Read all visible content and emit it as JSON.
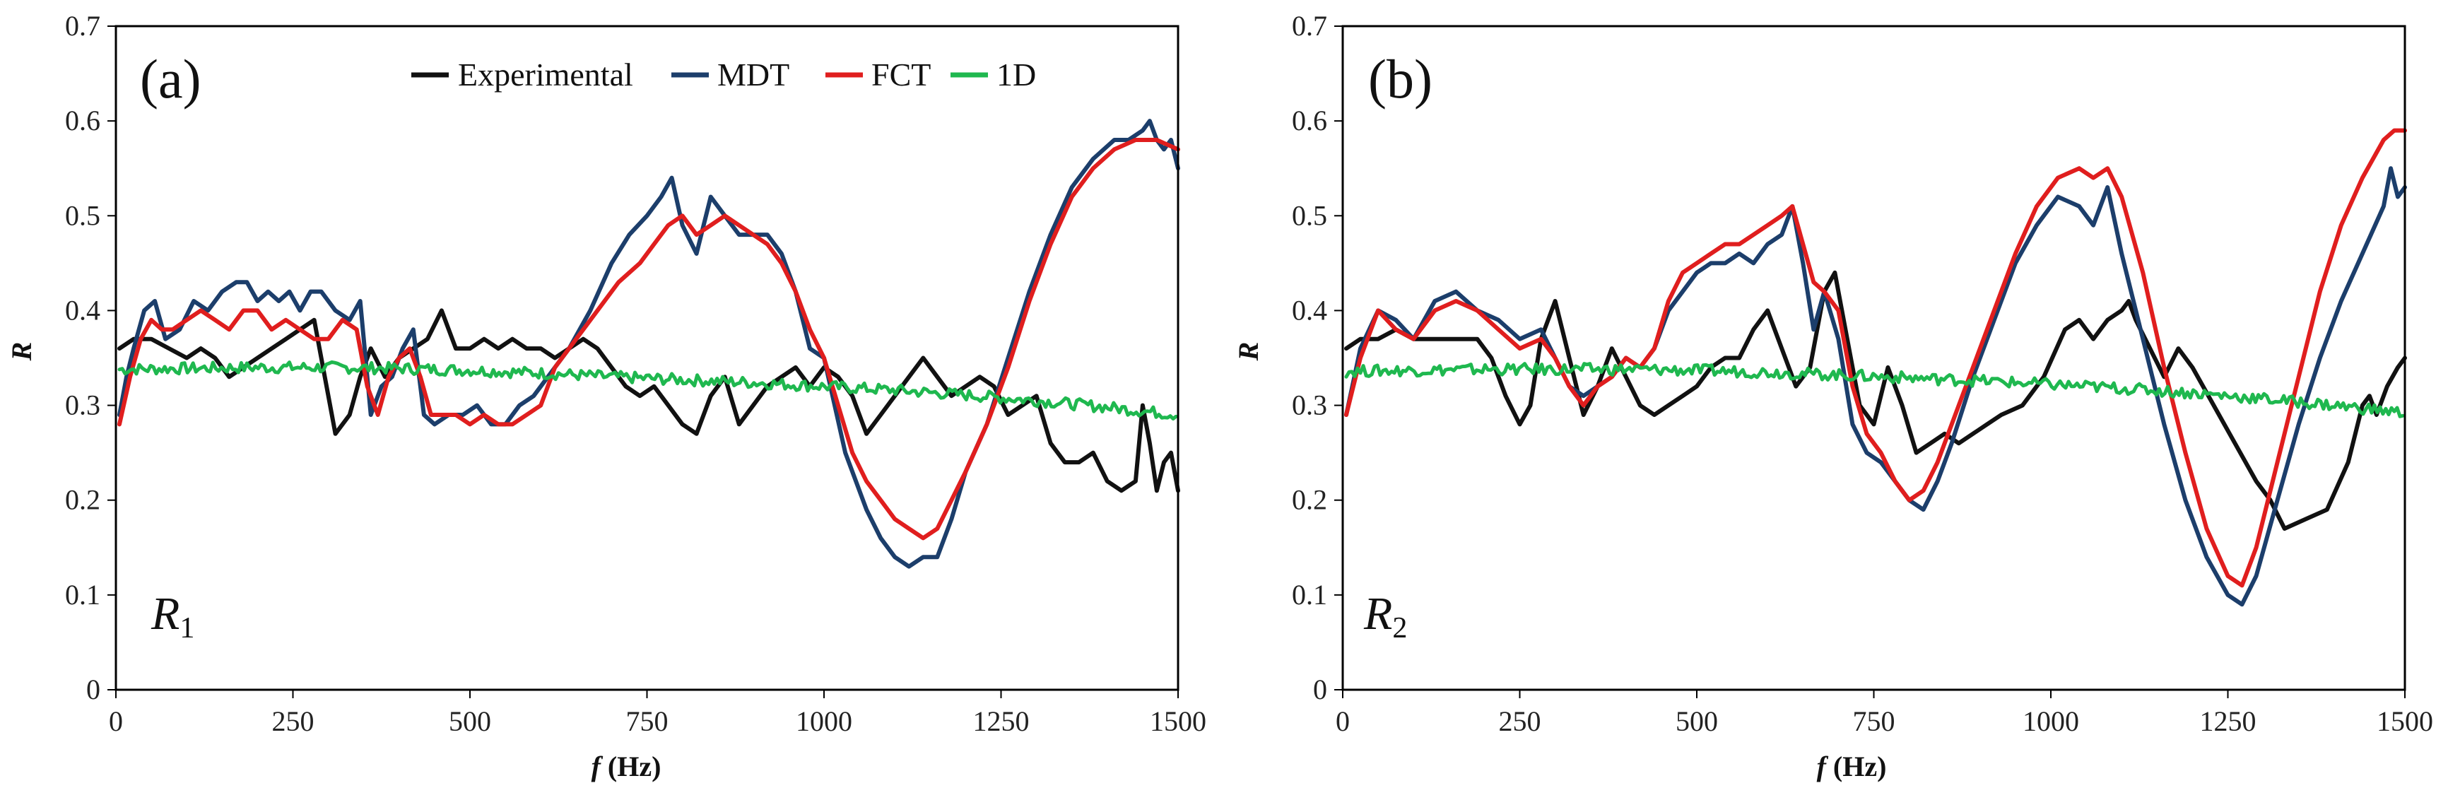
{
  "chart_data": [
    {
      "type": "line",
      "panel_label": "(a)",
      "annotation": {
        "main": "R",
        "sub": "1"
      },
      "xlabel": "f",
      "xlabel_unit": " (Hz)",
      "ylabel": "R",
      "xlim": [
        0,
        1500
      ],
      "ylim": [
        0,
        0.7
      ],
      "xticks": [
        "0",
        "250",
        "500",
        "750",
        "1000",
        "1250",
        "1500"
      ],
      "yticks": [
        "0",
        "0.1",
        "0.2",
        "0.3",
        "0.4",
        "0.5",
        "0.6",
        "0.7"
      ],
      "legend": [
        "Experimental",
        "MDT",
        "FCT",
        "1D"
      ],
      "series": [
        {
          "name": "Experimental",
          "color": "#111111",
          "x": [
            5,
            25,
            50,
            75,
            100,
            120,
            140,
            160,
            180,
            200,
            220,
            240,
            260,
            280,
            295,
            310,
            330,
            345,
            360,
            380,
            400,
            420,
            440,
            460,
            480,
            500,
            520,
            540,
            560,
            580,
            600,
            620,
            640,
            660,
            680,
            700,
            720,
            740,
            760,
            780,
            800,
            820,
            840,
            860,
            880,
            900,
            920,
            940,
            960,
            980,
            1000,
            1020,
            1040,
            1060,
            1080,
            1100,
            1120,
            1140,
            1160,
            1180,
            1200,
            1220,
            1240,
            1260,
            1280,
            1300,
            1320,
            1340,
            1360,
            1380,
            1400,
            1420,
            1440,
            1450,
            1460,
            1470,
            1480,
            1490,
            1500
          ],
          "y": [
            0.36,
            0.37,
            0.37,
            0.36,
            0.35,
            0.36,
            0.35,
            0.33,
            0.34,
            0.35,
            0.36,
            0.37,
            0.38,
            0.39,
            0.33,
            0.27,
            0.29,
            0.33,
            0.36,
            0.33,
            0.35,
            0.36,
            0.37,
            0.4,
            0.36,
            0.36,
            0.37,
            0.36,
            0.37,
            0.36,
            0.36,
            0.35,
            0.36,
            0.37,
            0.36,
            0.34,
            0.32,
            0.31,
            0.32,
            0.3,
            0.28,
            0.27,
            0.31,
            0.33,
            0.28,
            0.3,
            0.32,
            0.33,
            0.34,
            0.32,
            0.34,
            0.33,
            0.31,
            0.27,
            0.29,
            0.31,
            0.33,
            0.35,
            0.33,
            0.31,
            0.32,
            0.33,
            0.32,
            0.29,
            0.3,
            0.31,
            0.26,
            0.24,
            0.24,
            0.25,
            0.22,
            0.21,
            0.22,
            0.3,
            0.26,
            0.21,
            0.24,
            0.25,
            0.21
          ]
        },
        {
          "name": "MDT",
          "color": "#1c3e6b",
          "x": [
            5,
            15,
            25,
            40,
            55,
            70,
            90,
            110,
            130,
            150,
            170,
            185,
            200,
            215,
            230,
            245,
            260,
            275,
            290,
            310,
            330,
            345,
            360,
            375,
            390,
            405,
            420,
            435,
            450,
            470,
            490,
            510,
            530,
            550,
            570,
            590,
            610,
            640,
            670,
            700,
            725,
            750,
            770,
            785,
            800,
            820,
            840,
            860,
            880,
            900,
            920,
            940,
            960,
            980,
            1000,
            1030,
            1060,
            1080,
            1100,
            1120,
            1140,
            1160,
            1180,
            1200,
            1230,
            1260,
            1290,
            1320,
            1350,
            1380,
            1410,
            1430,
            1450,
            1460,
            1470,
            1480,
            1490,
            1500
          ],
          "y": [
            0.29,
            0.33,
            0.36,
            0.4,
            0.41,
            0.37,
            0.38,
            0.41,
            0.4,
            0.42,
            0.43,
            0.43,
            0.41,
            0.42,
            0.41,
            0.42,
            0.4,
            0.42,
            0.42,
            0.4,
            0.39,
            0.41,
            0.29,
            0.32,
            0.33,
            0.36,
            0.38,
            0.29,
            0.28,
            0.29,
            0.29,
            0.3,
            0.28,
            0.28,
            0.3,
            0.31,
            0.33,
            0.36,
            0.4,
            0.45,
            0.48,
            0.5,
            0.52,
            0.54,
            0.49,
            0.46,
            0.52,
            0.5,
            0.48,
            0.48,
            0.48,
            0.46,
            0.42,
            0.36,
            0.35,
            0.25,
            0.19,
            0.16,
            0.14,
            0.13,
            0.14,
            0.14,
            0.18,
            0.23,
            0.28,
            0.35,
            0.42,
            0.48,
            0.53,
            0.56,
            0.58,
            0.58,
            0.59,
            0.6,
            0.58,
            0.57,
            0.58,
            0.55
          ]
        },
        {
          "name": "FCT",
          "color": "#e01e1e",
          "x": [
            5,
            20,
            35,
            50,
            65,
            80,
            100,
            120,
            140,
            160,
            180,
            200,
            220,
            240,
            260,
            280,
            300,
            320,
            340,
            355,
            370,
            385,
            400,
            415,
            430,
            445,
            460,
            480,
            500,
            520,
            540,
            560,
            580,
            600,
            620,
            650,
            680,
            710,
            740,
            760,
            780,
            800,
            820,
            840,
            860,
            880,
            900,
            920,
            940,
            960,
            980,
            1000,
            1020,
            1040,
            1060,
            1080,
            1100,
            1120,
            1140,
            1160,
            1180,
            1200,
            1230,
            1260,
            1290,
            1320,
            1350,
            1380,
            1410,
            1440,
            1470,
            1500
          ],
          "y": [
            0.28,
            0.33,
            0.37,
            0.39,
            0.38,
            0.38,
            0.39,
            0.4,
            0.39,
            0.38,
            0.4,
            0.4,
            0.38,
            0.39,
            0.38,
            0.37,
            0.37,
            0.39,
            0.38,
            0.32,
            0.29,
            0.33,
            0.35,
            0.36,
            0.33,
            0.29,
            0.29,
            0.29,
            0.28,
            0.29,
            0.28,
            0.28,
            0.29,
            0.3,
            0.34,
            0.37,
            0.4,
            0.43,
            0.45,
            0.47,
            0.49,
            0.5,
            0.48,
            0.49,
            0.5,
            0.49,
            0.48,
            0.47,
            0.45,
            0.42,
            0.38,
            0.35,
            0.3,
            0.25,
            0.22,
            0.2,
            0.18,
            0.17,
            0.16,
            0.17,
            0.2,
            0.23,
            0.28,
            0.34,
            0.41,
            0.47,
            0.52,
            0.55,
            0.57,
            0.58,
            0.58,
            0.57
          ]
        },
        {
          "name": "1D",
          "color": "#1fb84f",
          "x": [
            5,
            100,
            200,
            300,
            400,
            500,
            600,
            700,
            800,
            900,
            1000,
            1100,
            1200,
            1300,
            1400,
            1500
          ],
          "y": [
            0.338,
            0.339,
            0.34,
            0.34,
            0.339,
            0.337,
            0.334,
            0.33,
            0.327,
            0.324,
            0.32,
            0.316,
            0.311,
            0.305,
            0.298,
            0.29
          ]
        }
      ]
    },
    {
      "type": "line",
      "panel_label": "(b)",
      "annotation": {
        "main": "R",
        "sub": "2"
      },
      "xlabel": "f",
      "xlabel_unit": " (Hz)",
      "ylabel": "R",
      "xlim": [
        0,
        1500
      ],
      "ylim": [
        0,
        0.7
      ],
      "xticks": [
        "0",
        "250",
        "500",
        "750",
        "1000",
        "1250",
        "1500"
      ],
      "yticks": [
        "0",
        "0.1",
        "0.2",
        "0.3",
        "0.4",
        "0.5",
        "0.6",
        "0.7"
      ],
      "series": [
        {
          "name": "Experimental",
          "color": "#111111",
          "x": [
            5,
            25,
            50,
            75,
            100,
            130,
            160,
            190,
            210,
            230,
            250,
            265,
            280,
            300,
            320,
            340,
            360,
            380,
            400,
            420,
            440,
            460,
            480,
            500,
            520,
            540,
            560,
            580,
            600,
            620,
            640,
            660,
            680,
            695,
            710,
            730,
            750,
            770,
            790,
            810,
            830,
            850,
            870,
            890,
            910,
            930,
            960,
            990,
            1020,
            1040,
            1060,
            1080,
            1100,
            1110,
            1120,
            1140,
            1160,
            1180,
            1200,
            1230,
            1260,
            1290,
            1310,
            1330,
            1360,
            1390,
            1420,
            1440,
            1450,
            1460,
            1475,
            1490,
            1500
          ],
          "y": [
            0.36,
            0.37,
            0.37,
            0.38,
            0.37,
            0.37,
            0.37,
            0.37,
            0.35,
            0.31,
            0.28,
            0.3,
            0.37,
            0.41,
            0.35,
            0.29,
            0.32,
            0.36,
            0.33,
            0.3,
            0.29,
            0.3,
            0.31,
            0.32,
            0.34,
            0.35,
            0.35,
            0.38,
            0.4,
            0.36,
            0.32,
            0.34,
            0.42,
            0.44,
            0.38,
            0.3,
            0.28,
            0.34,
            0.3,
            0.25,
            0.26,
            0.27,
            0.26,
            0.27,
            0.28,
            0.29,
            0.3,
            0.33,
            0.38,
            0.39,
            0.37,
            0.39,
            0.4,
            0.41,
            0.39,
            0.36,
            0.33,
            0.36,
            0.34,
            0.3,
            0.26,
            0.22,
            0.2,
            0.17,
            0.18,
            0.19,
            0.24,
            0.3,
            0.31,
            0.29,
            0.32,
            0.34,
            0.35
          ]
        },
        {
          "name": "MDT",
          "color": "#1c3e6b",
          "x": [
            5,
            25,
            50,
            75,
            100,
            130,
            160,
            190,
            220,
            250,
            280,
            300,
            320,
            340,
            360,
            380,
            400,
            420,
            440,
            460,
            480,
            500,
            520,
            540,
            560,
            580,
            600,
            620,
            635,
            650,
            665,
            680,
            700,
            720,
            740,
            760,
            780,
            800,
            820,
            840,
            860,
            890,
            920,
            950,
            980,
            1010,
            1040,
            1060,
            1080,
            1100,
            1130,
            1160,
            1190,
            1220,
            1250,
            1270,
            1290,
            1320,
            1350,
            1380,
            1410,
            1440,
            1470,
            1480,
            1490,
            1500
          ],
          "y": [
            0.29,
            0.36,
            0.4,
            0.39,
            0.37,
            0.41,
            0.42,
            0.4,
            0.39,
            0.37,
            0.38,
            0.35,
            0.32,
            0.31,
            0.32,
            0.33,
            0.35,
            0.34,
            0.36,
            0.4,
            0.42,
            0.44,
            0.45,
            0.45,
            0.46,
            0.45,
            0.47,
            0.48,
            0.51,
            0.45,
            0.38,
            0.42,
            0.37,
            0.28,
            0.25,
            0.24,
            0.22,
            0.2,
            0.19,
            0.22,
            0.26,
            0.33,
            0.39,
            0.45,
            0.49,
            0.52,
            0.51,
            0.49,
            0.53,
            0.46,
            0.37,
            0.28,
            0.2,
            0.14,
            0.1,
            0.09,
            0.12,
            0.2,
            0.28,
            0.35,
            0.41,
            0.46,
            0.51,
            0.55,
            0.52,
            0.53
          ]
        },
        {
          "name": "FCT",
          "color": "#e01e1e",
          "x": [
            5,
            25,
            50,
            75,
            100,
            130,
            160,
            190,
            220,
            250,
            280,
            300,
            320,
            340,
            360,
            380,
            400,
            420,
            440,
            460,
            480,
            500,
            520,
            540,
            560,
            580,
            600,
            620,
            635,
            650,
            665,
            680,
            700,
            720,
            740,
            760,
            780,
            800,
            820,
            840,
            860,
            890,
            920,
            950,
            980,
            1010,
            1040,
            1060,
            1080,
            1100,
            1130,
            1160,
            1190,
            1220,
            1250,
            1270,
            1290,
            1320,
            1350,
            1380,
            1410,
            1440,
            1470,
            1485,
            1500
          ],
          "y": [
            0.29,
            0.35,
            0.4,
            0.38,
            0.37,
            0.4,
            0.41,
            0.4,
            0.38,
            0.36,
            0.37,
            0.35,
            0.32,
            0.3,
            0.32,
            0.33,
            0.35,
            0.34,
            0.36,
            0.41,
            0.44,
            0.45,
            0.46,
            0.47,
            0.47,
            0.48,
            0.49,
            0.5,
            0.51,
            0.47,
            0.43,
            0.42,
            0.4,
            0.32,
            0.27,
            0.25,
            0.22,
            0.2,
            0.21,
            0.24,
            0.28,
            0.34,
            0.4,
            0.46,
            0.51,
            0.54,
            0.55,
            0.54,
            0.55,
            0.52,
            0.44,
            0.34,
            0.25,
            0.17,
            0.12,
            0.11,
            0.15,
            0.24,
            0.33,
            0.42,
            0.49,
            0.54,
            0.58,
            0.59,
            0.59
          ]
        },
        {
          "name": "1D",
          "color": "#1fb84f",
          "x": [
            5,
            100,
            200,
            300,
            400,
            500,
            600,
            700,
            800,
            900,
            1000,
            1100,
            1200,
            1300,
            1400,
            1500
          ],
          "y": [
            0.336,
            0.337,
            0.338,
            0.338,
            0.338,
            0.337,
            0.335,
            0.332,
            0.329,
            0.326,
            0.322,
            0.318,
            0.313,
            0.307,
            0.3,
            0.292
          ]
        }
      ]
    }
  ]
}
